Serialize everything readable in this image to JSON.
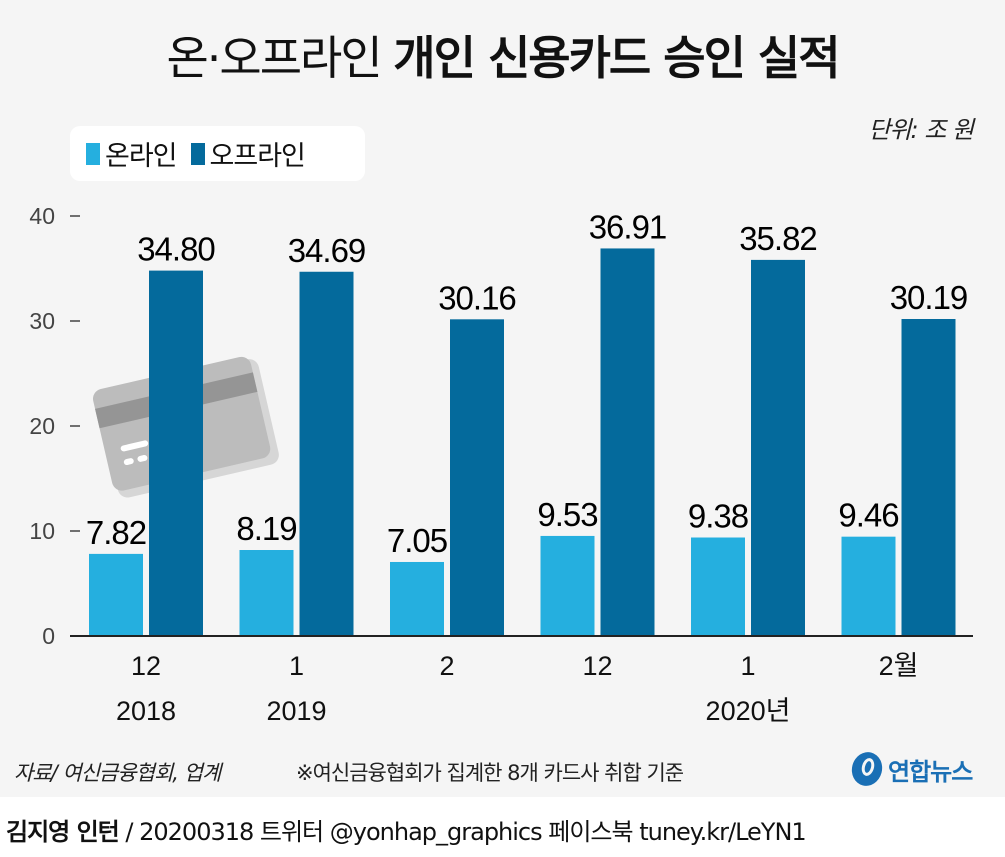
{
  "title": {
    "light": "온·오프라인",
    "bold": "개인 신용카드 승인 실적"
  },
  "unit": "단위: 조 원",
  "legend": [
    {
      "label": "온라인",
      "color": "#25afdf"
    },
    {
      "label": "오프라인",
      "color": "#046a9c"
    }
  ],
  "footer": {
    "source": "자료/ 여신금융협회, 업계",
    "note": "※여신금융협회가 집계한 8개 카드사 취합 기준",
    "logo": "연합뉴스",
    "author": "김지영 인턴",
    "credit_rest": " / 20200318 트위터 @yonhap_graphics  페이스북 tuney.kr/LeYN1"
  },
  "chart_data": {
    "type": "bar",
    "title": "온·오프라인 개인 신용카드 승인 실적",
    "ylabel": "단위: 조 원",
    "xlabel": "",
    "ylim": [
      0,
      40
    ],
    "yticks": [
      "0",
      "10",
      "20",
      "30",
      "40"
    ],
    "categories": [
      "12",
      "1",
      "2",
      "12",
      "1",
      "2월"
    ],
    "category_years": [
      "2018",
      "2019",
      "",
      "",
      "2020년",
      ""
    ],
    "legend_position": "top-left",
    "grid": false,
    "series": [
      {
        "name": "온라인",
        "color": "#25afdf",
        "values": [
          7.82,
          8.19,
          7.05,
          9.53,
          9.38,
          9.46
        ],
        "labels": [
          "7.82",
          "8.19",
          "7.05",
          "9.53",
          "9.38",
          "9.46"
        ]
      },
      {
        "name": "오프라인",
        "color": "#046a9c",
        "values": [
          34.8,
          34.69,
          30.16,
          36.91,
          35.82,
          30.19
        ],
        "labels": [
          "34.80",
          "34.69",
          "30.16",
          "36.91",
          "35.82",
          "30.19"
        ]
      }
    ]
  }
}
